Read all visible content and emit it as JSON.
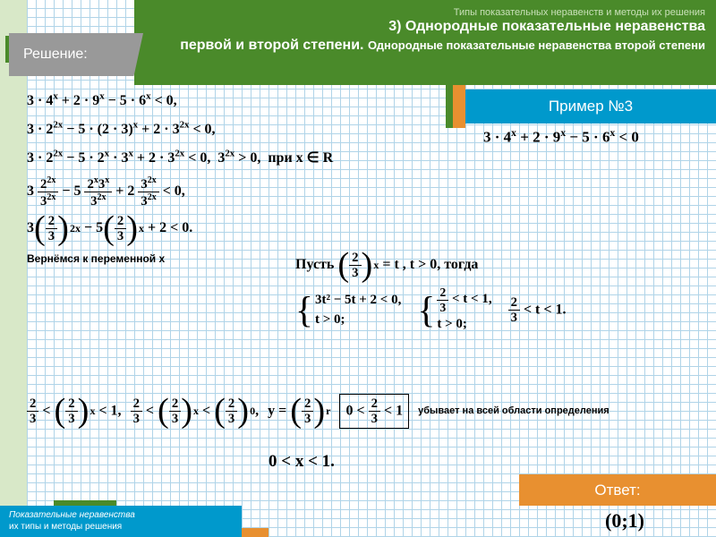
{
  "colors": {
    "green": "#4a8a2a",
    "blue": "#0099cc",
    "orange": "#e89030",
    "gray": "#999999",
    "grid": "#b0d4e8",
    "light_green": "#d8e8c8"
  },
  "header": {
    "subtitle": "Типы показательных неравенств и методы их решения",
    "title_line1": "3) Однородные показательные неравенства",
    "title_line2_a": "первой и второй степени. ",
    "title_line2_b": "Однородные показательные неравенства второй степени"
  },
  "solution_label": "Решение:",
  "example_label": "Пример №3",
  "example_formula": "3 · 4ˣ + 2 · 9ˣ − 5 · 6ˣ < 0",
  "answer_label": "Ответ:",
  "answer_value": "(0;1)",
  "footer_line1": "Показательные неравенства",
  "footer_line2": "их типы и методы решения",
  "math": {
    "line1": "3 · 4ˣ + 2 · 9ˣ − 5 · 6ˣ < 0,",
    "line2": "3 · 2²ˣ − 5 · (2 · 3)ˣ + 2 · 3²ˣ < 0,",
    "line3": "3 · 2²ˣ − 5 · 2ˣ · 3ˣ + 2 · 3²ˣ < 0,  3²ˣ > 0,  при x ∈ R",
    "return_label": "Вернёмся к переменной x",
    "final_result": "0 < x < 1.",
    "pust_text": "Пусть ",
    "togda_text": " = t , t > 0, тогда",
    "ubyvaet": "убывает на всей области определения",
    "sys1_a": "3t² − 5t + 2 < 0,",
    "sys1_b": "t > 0;"
  }
}
